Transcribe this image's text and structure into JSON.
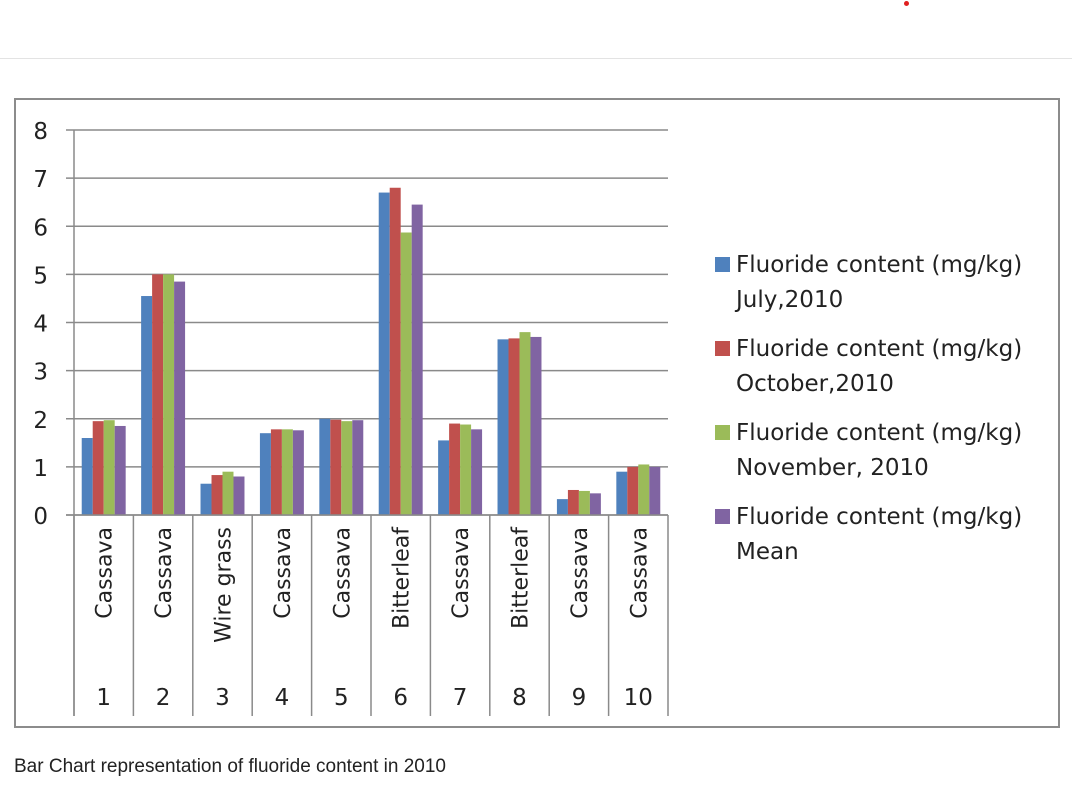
{
  "caption": "Bar Chart representation of fluoride content in 2010",
  "chart_data": {
    "type": "bar",
    "title": "",
    "xlabel": "",
    "ylabel": "",
    "ylim": [
      0,
      8
    ],
    "yticks": [
      0,
      1,
      2,
      3,
      4,
      5,
      6,
      7,
      8
    ],
    "grid": true,
    "legend_position": "right",
    "categories": [
      {
        "number": "1",
        "name": "Cassava"
      },
      {
        "number": "2",
        "name": "Cassava"
      },
      {
        "number": "3",
        "name": "Wire grass"
      },
      {
        "number": "4",
        "name": "Cassava"
      },
      {
        "number": "5",
        "name": "Cassava"
      },
      {
        "number": "6",
        "name": "Bitterleaf"
      },
      {
        "number": "7",
        "name": "Cassava"
      },
      {
        "number": "8",
        "name": "Bitterleaf"
      },
      {
        "number": "9",
        "name": "Cassava"
      },
      {
        "number": "10",
        "name": "Cassava"
      }
    ],
    "series": [
      {
        "name": "Fluoride content (mg/kg) July,2010",
        "name_lines": [
          "Fluoride content (mg/kg)",
          "July,2010"
        ],
        "color": "#4f81bd",
        "values": [
          1.6,
          4.55,
          0.65,
          1.7,
          2.0,
          6.7,
          1.55,
          3.65,
          0.33,
          0.9
        ]
      },
      {
        "name": "Fluoride content (mg/kg) October,2010",
        "name_lines": [
          "Fluoride content (mg/kg)",
          "October,2010"
        ],
        "color": "#c0504d",
        "values": [
          1.95,
          5.0,
          0.83,
          1.78,
          1.98,
          6.8,
          1.9,
          3.67,
          0.52,
          1.0
        ]
      },
      {
        "name": "Fluoride content (mg/kg) November, 2010",
        "name_lines": [
          "Fluoride content (mg/kg)",
          "November, 2010"
        ],
        "color": "#9bbb59",
        "values": [
          1.97,
          5.0,
          0.9,
          1.78,
          1.95,
          5.87,
          1.88,
          3.8,
          0.5,
          1.05
        ]
      },
      {
        "name": "Fluoride content (mg/kg) Mean",
        "name_lines": [
          "Fluoride content (mg/kg)",
          "Mean"
        ],
        "color": "#8064a2",
        "values": [
          1.85,
          4.85,
          0.8,
          1.76,
          1.97,
          6.45,
          1.78,
          3.7,
          0.45,
          1.0
        ]
      }
    ]
  }
}
